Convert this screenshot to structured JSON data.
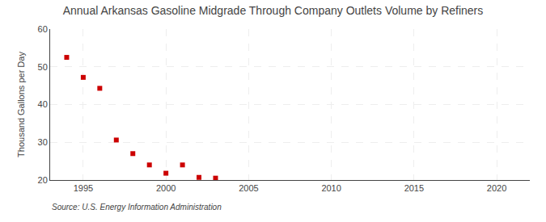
{
  "chart_data": {
    "type": "scatter",
    "title": "Annual Arkansas Gasoline Midgrade Through Company Outlets Volume by Refiners",
    "ylabel": "Thousand Gallons per Day",
    "annotation": "Source: U.S. Energy Information Administration",
    "x": [
      1994,
      1995,
      1996,
      1997,
      1998,
      1999,
      2000,
      2001,
      2002,
      2003
    ],
    "values": [
      52.5,
      47.2,
      44.3,
      30.6,
      27.0,
      24.0,
      21.8,
      24.0,
      20.7,
      20.5
    ],
    "color": "#cc0000",
    "marker": "square",
    "xlim": [
      1993,
      2022
    ],
    "ylim": [
      20,
      60
    ],
    "xticks": [
      1995,
      2000,
      2005,
      2010,
      2015,
      2020
    ],
    "yticks": [
      20,
      30,
      40,
      50,
      60
    ],
    "grid": true
  }
}
